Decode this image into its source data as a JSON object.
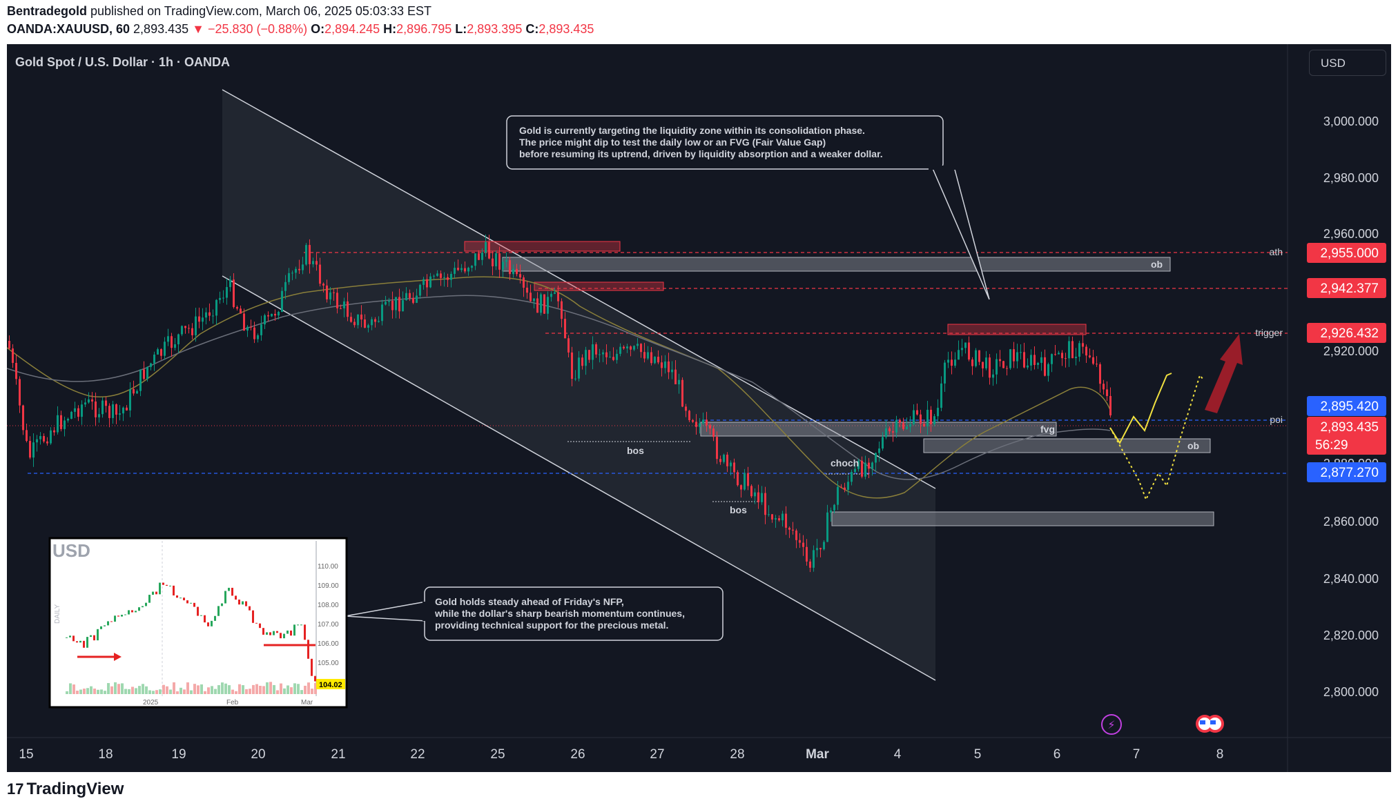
{
  "header": {
    "author": "Bentradegold",
    "published_text": " published on TradingView.com, March 06, 2025 05:03:33 EST",
    "symbol": "OANDA:XAUUSD, 60",
    "price": "2,893.435",
    "change": "▼ −25.830 (−0.88%)",
    "o_label": "O:",
    "o_value": "2,894.245",
    "h_label": "H:",
    "h_value": "2,896.795",
    "l_label": "L:",
    "l_value": "2,893.395",
    "c_label": "C:",
    "c_value": "2,893.435"
  },
  "legend": "Gold Spot / U.S. Dollar · 1h · OANDA",
  "currency_button": "USD",
  "price_axis": {
    "ticks": [
      "3,000.000",
      "2,980.000",
      "2,960.000",
      "2,920.000",
      "2,860.000",
      "2,840.000",
      "2,820.000",
      "2,800.000"
    ],
    "tags": [
      {
        "text": "2,955.000",
        "color": "#f23645"
      },
      {
        "text": "2,942.377",
        "color": "#f23645"
      },
      {
        "text": "2,926.432",
        "color": "#f23645"
      },
      {
        "text": "2,895.420",
        "color": "#2962ff"
      },
      {
        "text": "2,893.435",
        "color": "#f23645"
      },
      {
        "text": "56:29",
        "color": "#f23645"
      },
      {
        "text": "2,877.270",
        "color": "#2962ff"
      }
    ]
  },
  "time_axis": [
    "15",
    "18",
    "19",
    "20",
    "21",
    "22",
    "25",
    "26",
    "27",
    "28",
    "Mar",
    "4",
    "5",
    "6",
    "7",
    "8"
  ],
  "level_labels": {
    "ath": "ath",
    "trigger": "trigger",
    "poi": "poi"
  },
  "zone_labels": {
    "ob_top": "ob",
    "ob_right": "ob",
    "fvg": "fvg",
    "bos1": "bos",
    "bos2": "bos",
    "choch": "choch"
  },
  "callouts": {
    "top": [
      "Gold is currently targeting the liquidity zone within its consolidation phase.",
      "The price might dip to test the daily low or an FVG (Fair Value Gap)",
      "before resuming its uptrend, driven by liquidity absorption and a weaker dollar."
    ],
    "bottom": [
      "Gold holds steady ahead of Friday's NFP,",
      "while the dollar's sharp bearish momentum continues,",
      " providing technical support for the precious metal."
    ]
  },
  "inset": {
    "title": "USD",
    "side_label": "DAILY",
    "y_ticks": [
      "110.00",
      "109.00",
      "108.00",
      "107.00",
      "106.00",
      "105.00"
    ],
    "last_value": "104.02",
    "x_ticks": [
      "2025",
      "Feb",
      "Mar"
    ]
  },
  "footer": {
    "logo": "TradingView"
  },
  "colors": {
    "bg": "#131722",
    "up": "#089981",
    "down": "#f23645",
    "blue": "#2962ff",
    "ma1": "#8a7f3a",
    "ma2": "#6b6f7a"
  }
}
